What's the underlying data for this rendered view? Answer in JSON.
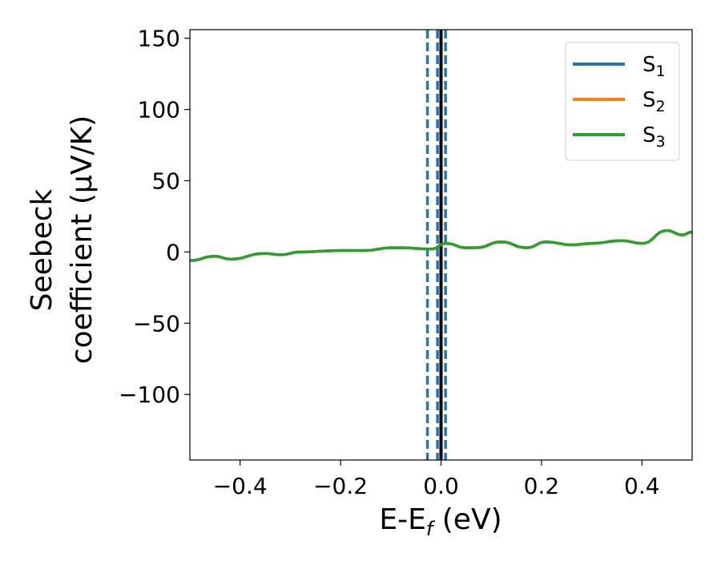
{
  "chart_data": {
    "type": "line",
    "xlabel_main": "E-E",
    "xlabel_sub": "f",
    "xlabel_unit": " (eV)",
    "ylabel_line1": "Seebeck",
    "ylabel_line2": "coefficient  (μV/K)",
    "xlim": [
      -0.5,
      0.5
    ],
    "ylim": [
      -146,
      156
    ],
    "xticks": [
      -0.4,
      -0.2,
      0.0,
      0.2,
      0.4
    ],
    "xtick_labels": [
      "−0.4",
      "−0.2",
      "0.0",
      "0.2",
      "0.4"
    ],
    "yticks": [
      -100,
      -50,
      0,
      50,
      100,
      150
    ],
    "ytick_labels": [
      "−100",
      "−50",
      "0",
      "50",
      "100",
      "150"
    ],
    "grid": false,
    "legend_position": "top-right",
    "series": [
      {
        "name": "S",
        "sub": "1",
        "color": "#1f77b4",
        "x": [
          -0.5,
          -0.45,
          -0.42,
          -0.35,
          -0.32,
          -0.28,
          -0.2,
          -0.15,
          -0.1,
          -0.08,
          -0.02,
          0.01,
          0.05,
          0.07,
          0.12,
          0.17,
          0.21,
          0.26,
          0.3,
          0.36,
          0.4,
          0.45,
          0.48,
          0.5
        ],
        "y": [
          -6,
          -3,
          -5,
          -1,
          -2,
          0,
          1,
          1,
          3,
          3,
          2,
          6,
          3,
          3,
          7,
          3,
          7,
          5,
          6,
          8,
          6,
          15,
          12,
          14
        ]
      },
      {
        "name": "S",
        "sub": "2",
        "color": "#ff7f0e",
        "x": [
          -0.5,
          -0.45,
          -0.42,
          -0.35,
          -0.32,
          -0.28,
          -0.2,
          -0.15,
          -0.1,
          -0.08,
          -0.02,
          0.01,
          0.05,
          0.07,
          0.12,
          0.17,
          0.21,
          0.26,
          0.3,
          0.36,
          0.4,
          0.45,
          0.48,
          0.5
        ],
        "y": [
          -6,
          -3,
          -5,
          -1,
          -2,
          0,
          1,
          1,
          3,
          3,
          2,
          6,
          3,
          3,
          7,
          3,
          7,
          5,
          6,
          8,
          6,
          15,
          12,
          14
        ]
      },
      {
        "name": "S",
        "sub": "3",
        "color": "#2ca02c",
        "x": [
          -0.5,
          -0.45,
          -0.42,
          -0.35,
          -0.32,
          -0.28,
          -0.2,
          -0.15,
          -0.1,
          -0.08,
          -0.02,
          0.01,
          0.05,
          0.07,
          0.12,
          0.17,
          0.21,
          0.26,
          0.3,
          0.36,
          0.4,
          0.45,
          0.48,
          0.5
        ],
        "y": [
          -6,
          -3,
          -5,
          -1,
          -2,
          0,
          1,
          1,
          3,
          3,
          2,
          6,
          3,
          3,
          7,
          3,
          7,
          5,
          6,
          8,
          6,
          15,
          12,
          14
        ]
      }
    ],
    "vlines": [
      {
        "x": -0.027,
        "style": "dashed",
        "color": "#1f77b4"
      },
      {
        "x": -0.007,
        "style": "dashed",
        "color": "#1f77b4"
      },
      {
        "x": 0.009,
        "style": "dashed",
        "color": "#1f77b4"
      },
      {
        "x": 0.0,
        "style": "solid",
        "color": "#000000"
      }
    ]
  }
}
